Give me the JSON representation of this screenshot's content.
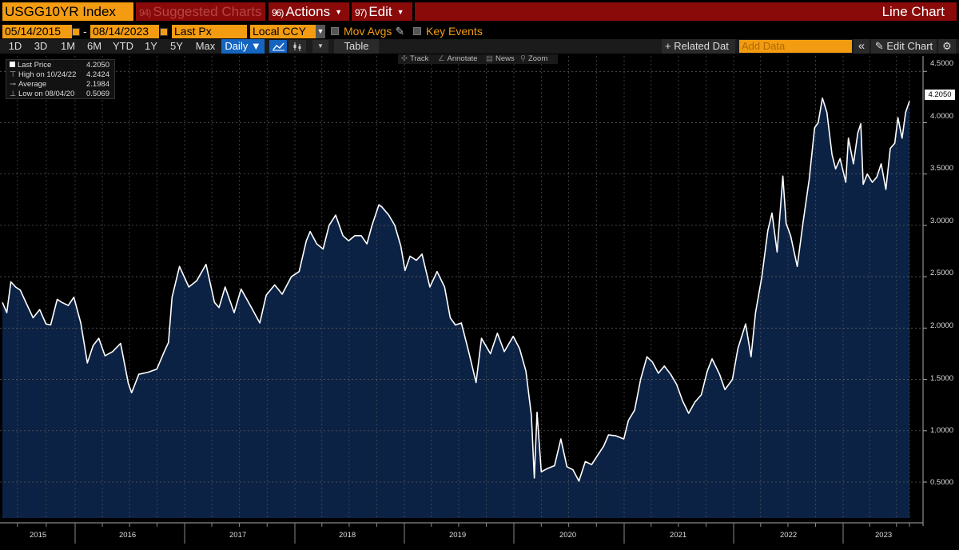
{
  "toolbar": {
    "ticker": "USGG10YR Index",
    "suggested_key": "94)",
    "suggested_label": "Suggested Charts",
    "actions_key": "96)",
    "actions_label": "Actions",
    "edit_key": "97)",
    "edit_label": "Edit",
    "chart_kind": "Line Chart"
  },
  "range": {
    "start_date": "05/14/2015",
    "separator": "-",
    "end_date": "08/14/2023",
    "field": "Last Px",
    "currency": "Local CCY",
    "mov_avgs_label": "Mov Avgs",
    "key_events_label": "Key Events"
  },
  "periods": {
    "buttons": [
      "1D",
      "3D",
      "1M",
      "6M",
      "YTD",
      "1Y",
      "5Y",
      "Max"
    ],
    "frequency": "Daily ▼",
    "table_label": "Table",
    "related_label": "+ Related Dat",
    "add_data_placeholder": "Add Data",
    "collapse_label": "«",
    "edit_chart_label": "✎ Edit Chart",
    "settings_label": "⚙"
  },
  "chart_tools": {
    "track": "Track",
    "annotate": "Annotate",
    "news": "News",
    "zoom": "Zoom"
  },
  "legend": {
    "last_price_label": "Last Price",
    "last_price_value": "4.2050",
    "high_label": "High on 10/24/22",
    "high_value": "4.2424",
    "average_label": "Average",
    "average_value": "2.1984",
    "low_label": "Low on 08/04/20",
    "low_value": "0.5069"
  },
  "colors": {
    "accent_orange": "#f39c12",
    "title_red": "#8a0a0a",
    "area_fill": "#0c2244",
    "line": "#ffffff"
  },
  "chart_data": {
    "type": "area",
    "title": "USGG10YR Index",
    "xlabel": "",
    "ylabel": "",
    "ylim": [
      0.15,
      4.65
    ],
    "yticks": [
      "4.5000",
      "4.0000",
      "3.5000",
      "3.0000",
      "2.5000",
      "2.0000",
      "1.5000",
      "1.0000",
      "0.5000"
    ],
    "year_labels": [
      "2015",
      "2016",
      "2017",
      "2018",
      "2019",
      "2020",
      "2021",
      "2022",
      "2023"
    ],
    "last_value_label": "4.2050",
    "grid": true,
    "series": [
      {
        "x": [
          "2015-05-14",
          "2015-05-28",
          "2015-06-10",
          "2015-06-25",
          "2015-07-10",
          "2015-07-28",
          "2015-08-20",
          "2015-09-10",
          "2015-09-30",
          "2015-10-15",
          "2015-11-05",
          "2015-11-20",
          "2015-12-10",
          "2015-12-28",
          "2016-01-20",
          "2016-02-11",
          "2016-03-01",
          "2016-03-20",
          "2016-04-10",
          "2016-05-05",
          "2016-06-01",
          "2016-06-27",
          "2016-07-08",
          "2016-08-01",
          "2016-09-01",
          "2016-09-30",
          "2016-10-25",
          "2016-11-08",
          "2016-11-20",
          "2016-12-15",
          "2017-01-15",
          "2017-02-10",
          "2017-03-13",
          "2017-04-10",
          "2017-04-25",
          "2017-05-15",
          "2017-06-14",
          "2017-07-07",
          "2017-08-10",
          "2017-09-07",
          "2017-09-28",
          "2017-10-26",
          "2017-11-20",
          "2017-12-20",
          "2018-01-15",
          "2018-02-08",
          "2018-02-21",
          "2018-03-15",
          "2018-04-05",
          "2018-04-25",
          "2018-05-17",
          "2018-06-10",
          "2018-06-29",
          "2018-07-20",
          "2018-08-10",
          "2018-08-29",
          "2018-09-15",
          "2018-10-08",
          "2018-10-18",
          "2018-11-10",
          "2018-11-30",
          "2018-12-20",
          "2019-01-03",
          "2019-01-20",
          "2019-02-10",
          "2019-03-01",
          "2019-03-27",
          "2019-04-20",
          "2019-05-15",
          "2019-06-03",
          "2019-06-20",
          "2019-07-10",
          "2019-08-05",
          "2019-08-28",
          "2019-09-15",
          "2019-10-15",
          "2019-11-07",
          "2019-11-30",
          "2019-12-30",
          "2020-01-20",
          "2020-02-10",
          "2020-02-28",
          "2020-03-09",
          "2020-03-18",
          "2020-04-01",
          "2020-04-20",
          "2020-05-15",
          "2020-06-05",
          "2020-06-25",
          "2020-07-15",
          "2020-08-04",
          "2020-08-25",
          "2020-09-15",
          "2020-10-05",
          "2020-10-25",
          "2020-11-10",
          "2020-12-05",
          "2020-12-31",
          "2021-01-15",
          "2021-02-05",
          "2021-02-25",
          "2021-03-18",
          "2021-04-05",
          "2021-04-25",
          "2021-05-15",
          "2021-06-05",
          "2021-06-25",
          "2021-07-15",
          "2021-08-04",
          "2021-08-25",
          "2021-09-15",
          "2021-10-05",
          "2021-10-21",
          "2021-11-15",
          "2021-12-03",
          "2021-12-28",
          "2022-01-15",
          "2022-02-10",
          "2022-02-28",
          "2022-03-15",
          "2022-04-05",
          "2022-04-25",
          "2022-05-09",
          "2022-05-26",
          "2022-06-14",
          "2022-06-25",
          "2022-07-10",
          "2022-08-01",
          "2022-08-20",
          "2022-09-10",
          "2022-09-28",
          "2022-10-10",
          "2022-10-24",
          "2022-11-08",
          "2022-11-25",
          "2022-12-07",
          "2022-12-22",
          "2023-01-10",
          "2023-01-19",
          "2023-02-05",
          "2023-02-20",
          "2023-03-02",
          "2023-03-10",
          "2023-03-24",
          "2023-04-10",
          "2023-04-25",
          "2023-05-10",
          "2023-05-26",
          "2023-06-10",
          "2023-06-25",
          "2023-07-06",
          "2023-07-20",
          "2023-08-01",
          "2023-08-14"
        ],
        "values": [
          2.25,
          2.15,
          2.45,
          2.4,
          2.37,
          2.25,
          2.1,
          2.18,
          2.04,
          2.03,
          2.28,
          2.25,
          2.22,
          2.3,
          2.05,
          1.66,
          1.83,
          1.9,
          1.73,
          1.77,
          1.85,
          1.46,
          1.37,
          1.55,
          1.57,
          1.6,
          1.77,
          1.86,
          2.3,
          2.6,
          2.4,
          2.46,
          2.62,
          2.25,
          2.2,
          2.4,
          2.15,
          2.38,
          2.2,
          2.05,
          2.32,
          2.42,
          2.33,
          2.5,
          2.55,
          2.85,
          2.94,
          2.82,
          2.77,
          3.0,
          3.1,
          2.9,
          2.85,
          2.9,
          2.9,
          2.82,
          3.0,
          3.2,
          3.18,
          3.1,
          3.0,
          2.8,
          2.56,
          2.7,
          2.66,
          2.72,
          2.4,
          2.55,
          2.4,
          2.1,
          2.03,
          2.05,
          1.75,
          1.47,
          1.9,
          1.75,
          1.95,
          1.77,
          1.92,
          1.8,
          1.58,
          1.15,
          0.54,
          1.18,
          0.6,
          0.63,
          0.66,
          0.92,
          0.65,
          0.62,
          0.51,
          0.7,
          0.67,
          0.76,
          0.85,
          0.96,
          0.95,
          0.92,
          1.1,
          1.2,
          1.5,
          1.72,
          1.67,
          1.56,
          1.63,
          1.55,
          1.45,
          1.29,
          1.17,
          1.28,
          1.35,
          1.58,
          1.7,
          1.55,
          1.4,
          1.5,
          1.8,
          2.04,
          1.72,
          2.15,
          2.5,
          2.95,
          3.12,
          2.74,
          3.48,
          3.02,
          2.9,
          2.6,
          3.02,
          3.45,
          3.95,
          4.0,
          4.24,
          4.1,
          3.69,
          3.55,
          3.65,
          3.42,
          3.85,
          3.6,
          3.9,
          3.99,
          3.4,
          3.5,
          3.42,
          3.47,
          3.6,
          3.35,
          3.75,
          3.8,
          4.05,
          3.85,
          4.1,
          4.21
        ]
      }
    ]
  }
}
